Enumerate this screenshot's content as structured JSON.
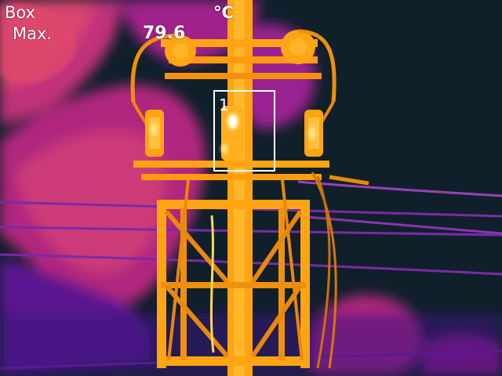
{
  "overlay": {
    "box_label": "Box",
    "max_label": "Max.",
    "max_value": "79.6",
    "unit": "°C"
  },
  "roi": {
    "number": "1"
  },
  "palette": {
    "sky": "#10202a",
    "cloud_magenta": "#b0267c",
    "cloud_pink": "#d9456e",
    "cool_purple": "#4a148c",
    "warm_orange": "#ffa010",
    "hot_yellow": "#ffd050",
    "hottest_white": "#fffbe0"
  }
}
